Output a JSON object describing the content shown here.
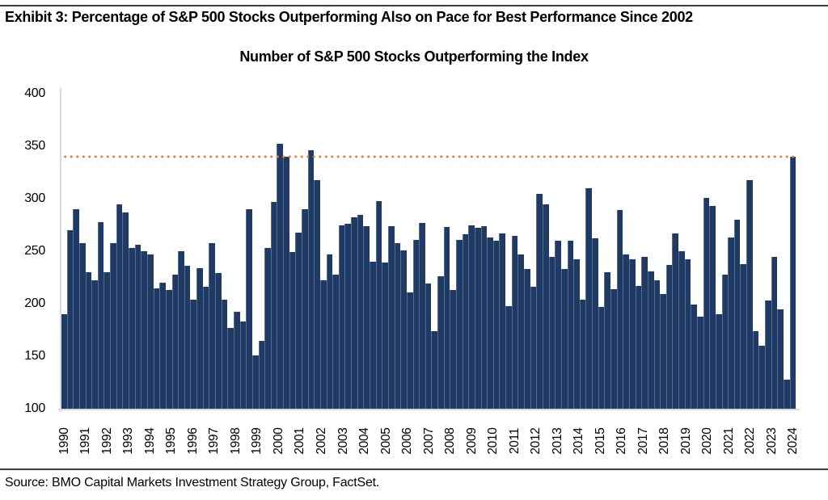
{
  "header": {
    "exhibit_title": "Exhibit 3: Percentage of S&P 500 Stocks Outperforming Also on Pace for Best Performance Since 2002"
  },
  "footer": {
    "source": "Source: BMO Capital Markets Investment Strategy Group, FactSet."
  },
  "colors": {
    "bar": "#1F3A64",
    "reference_line": "#ED7D31",
    "axis_line": "#D9D9D9",
    "rule": "#3F3F3F"
  },
  "chart_data": {
    "type": "bar",
    "title": "Number of S&P 500 Stocks Outperforming the Index",
    "xlabel": "",
    "ylabel": "",
    "ylim": [
      100,
      400
    ],
    "yticks": [
      400,
      350,
      300,
      250,
      200,
      150,
      100
    ],
    "grid": false,
    "legend": false,
    "bar_color": "#1F3A64",
    "reference_line": {
      "value": 340,
      "style": "dotted",
      "color": "#ED7D31"
    },
    "x_year_labels": [
      "1990",
      "1991",
      "1992",
      "1993",
      "1994",
      "1995",
      "1996",
      "1997",
      "1998",
      "1999",
      "2000",
      "2001",
      "2002",
      "2003",
      "2004",
      "2005",
      "2006",
      "2007",
      "2008",
      "2009",
      "2010",
      "2011",
      "2012",
      "2013",
      "2014",
      "2015",
      "2016",
      "2017",
      "2018",
      "2019",
      "2020",
      "2021",
      "2022",
      "2023",
      "2024"
    ],
    "values": [
      190,
      270,
      290,
      258,
      230,
      222,
      278,
      230,
      258,
      295,
      287,
      253,
      256,
      250,
      247,
      215,
      220,
      213,
      228,
      250,
      236,
      204,
      234,
      216,
      258,
      229,
      204,
      177,
      192,
      183,
      290,
      151,
      165,
      253,
      297,
      352,
      340,
      249,
      268,
      290,
      346,
      318,
      222,
      247,
      228,
      275,
      276,
      282,
      285,
      274,
      240,
      298,
      239,
      274,
      258,
      251,
      211,
      261,
      277,
      219,
      174,
      226,
      273,
      213,
      261,
      266,
      275,
      272,
      274,
      263,
      260,
      267,
      198,
      265,
      247,
      233,
      216,
      305,
      295,
      245,
      260,
      233,
      260,
      242,
      204,
      310,
      262,
      197,
      230,
      214,
      289,
      247,
      242,
      217,
      245,
      231,
      222,
      209,
      237,
      267,
      250,
      242,
      199,
      188,
      301,
      293,
      190,
      228,
      263,
      280,
      238,
      318,
      174,
      160,
      203,
      245,
      195,
      128,
      340
    ]
  }
}
